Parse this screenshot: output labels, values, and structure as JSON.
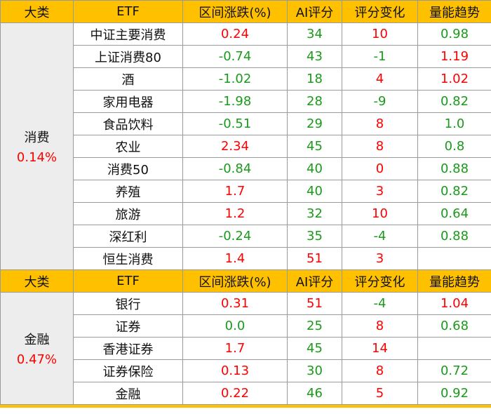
{
  "headers": [
    "大类",
    "ETF",
    "区间涨跌(%)",
    "AI评分",
    "评分变化",
    "量能趋势"
  ],
  "groups": [
    {
      "category": "消费",
      "change": "0.14%",
      "rows": [
        {
          "etf": "中证主要消费",
          "chg": "0.24",
          "ai": "34",
          "delta": "10",
          "vol": "0.98"
        },
        {
          "etf": "上证消费80",
          "chg": "-0.74",
          "ai": "43",
          "delta": "-1",
          "vol": "1.19"
        },
        {
          "etf": "酒",
          "chg": "-1.02",
          "ai": "18",
          "delta": "4",
          "vol": "1.02"
        },
        {
          "etf": "家用电器",
          "chg": "-1.98",
          "ai": "28",
          "delta": "-9",
          "vol": "0.82"
        },
        {
          "etf": "食品饮料",
          "chg": "-0.51",
          "ai": "29",
          "delta": "8",
          "vol": "1.0"
        },
        {
          "etf": "农业",
          "chg": "2.34",
          "ai": "45",
          "delta": "8",
          "vol": "0.8"
        },
        {
          "etf": "消费50",
          "chg": "-0.84",
          "ai": "40",
          "delta": "0",
          "vol": "0.88"
        },
        {
          "etf": "养殖",
          "chg": "1.7",
          "ai": "40",
          "delta": "3",
          "vol": "0.82"
        },
        {
          "etf": "旅游",
          "chg": "1.2",
          "ai": "32",
          "delta": "10",
          "vol": "0.64"
        },
        {
          "etf": "深红利",
          "chg": "-0.24",
          "ai": "35",
          "delta": "-4",
          "vol": "0.88"
        },
        {
          "etf": "恒生消费",
          "chg": "1.4",
          "ai": "51",
          "delta": "3",
          "vol": ""
        }
      ]
    },
    {
      "category": "金融",
      "change": "0.47%",
      "rows": [
        {
          "etf": "银行",
          "chg": "0.31",
          "ai": "51",
          "delta": "-4",
          "vol": "1.04"
        },
        {
          "etf": "证券",
          "chg": "0.0",
          "ai": "25",
          "delta": "8",
          "vol": "0.68"
        },
        {
          "etf": "香港证券",
          "chg": "1.7",
          "ai": "45",
          "delta": "14",
          "vol": ""
        },
        {
          "etf": "证券保险",
          "chg": "0.13",
          "ai": "30",
          "delta": "8",
          "vol": "0.72"
        },
        {
          "etf": "金融",
          "chg": "0.22",
          "ai": "46",
          "delta": "5",
          "vol": "0.92"
        }
      ]
    }
  ],
  "colors": {
    "header_bg": "#ffc000",
    "up": "#ff0000",
    "down": "#1a9a1a",
    "category_bg": "#ededed"
  }
}
